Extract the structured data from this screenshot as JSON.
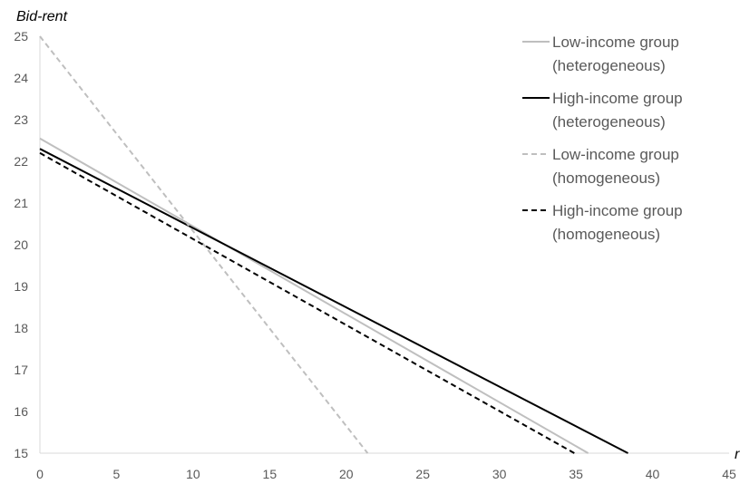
{
  "chart_data": {
    "type": "line",
    "ylabel": "Bid-rent",
    "xlabel": "r",
    "xlim": [
      0,
      45
    ],
    "ylim": [
      15,
      25
    ],
    "xticks": [
      0,
      5,
      10,
      15,
      20,
      25,
      30,
      35,
      40,
      45
    ],
    "yticks": [
      15,
      16,
      17,
      18,
      19,
      20,
      21,
      22,
      23,
      24,
      25
    ],
    "grid": false,
    "legend_position": "top-right",
    "series": [
      {
        "name": [
          "Low-income group",
          "(heterogeneous)"
        ],
        "color": "#bfbfbf",
        "dash": "solid",
        "points": [
          [
            0,
            22.55
          ],
          [
            35.8,
            15
          ]
        ]
      },
      {
        "name": [
          "High-income group",
          "(heterogeneous)"
        ],
        "color": "#000000",
        "dash": "solid",
        "points": [
          [
            0,
            22.3
          ],
          [
            38.4,
            15
          ]
        ]
      },
      {
        "name": [
          "Low-income group",
          "(homogeneous)"
        ],
        "color": "#bfbfbf",
        "dash": "dashed",
        "points": [
          [
            0,
            25
          ],
          [
            21.4,
            15
          ]
        ]
      },
      {
        "name": [
          "High-income group",
          "(homogeneous)"
        ],
        "color": "#000000",
        "dash": "dashed",
        "points": [
          [
            0,
            22.2
          ],
          [
            34.9,
            15
          ]
        ]
      }
    ]
  }
}
